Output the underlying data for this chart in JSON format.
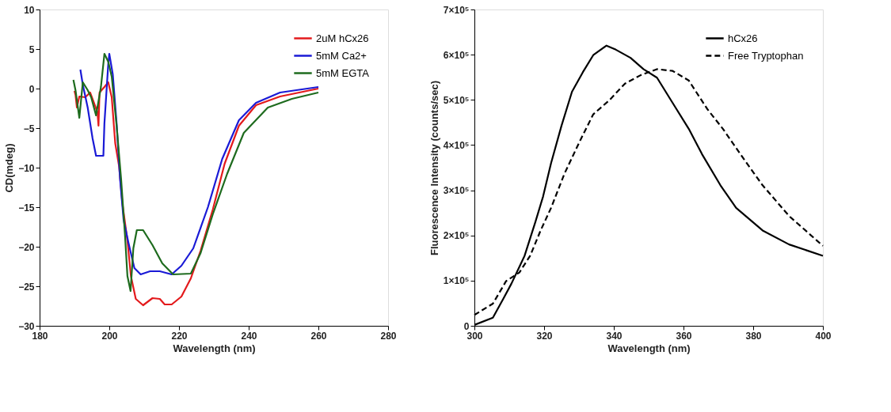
{
  "chart_data": [
    {
      "type": "line",
      "xlabel": "Wavelength (nm)",
      "ylabel": "CD(mdeg)",
      "xlim": [
        180,
        280
      ],
      "xticks": [
        180,
        200,
        220,
        240,
        260,
        280
      ],
      "ylim": [
        -30,
        10
      ],
      "yticks": [
        -30,
        -25,
        -20,
        -15,
        -10,
        -5,
        0,
        5,
        10
      ],
      "grid": false,
      "legend": "top right",
      "marker": "none",
      "series": [
        {
          "name": "2uM hCx26",
          "color": "#e31a1c",
          "line_style": "solid",
          "x": [
            190,
            190.3,
            190.7,
            191.4,
            193.1,
            194.5,
            196.6,
            196.9,
            197.2,
            198.6,
            199.7,
            200.7,
            201.7,
            202.8,
            203.8,
            205.2,
            206.2,
            207.6,
            209.7,
            212.4,
            214.5,
            215.9,
            217.9,
            220.7,
            223.4,
            226.2,
            229.7,
            233.1,
            237.2,
            242.1,
            249,
            260
          ],
          "values": [
            -0.3,
            -0.8,
            -2.4,
            -1,
            -1.1,
            -0.5,
            -3,
            -4.7,
            -0.5,
            0.2,
            0.8,
            -1.1,
            -6.9,
            -9.8,
            -14.7,
            -19.2,
            -23.7,
            -26.6,
            -27.4,
            -26.5,
            -26.6,
            -27.3,
            -27.3,
            -26.3,
            -24,
            -20.5,
            -15.3,
            -9.5,
            -4.7,
            -2.1,
            -1,
            0
          ]
        },
        {
          "name": "5mM Ca2+",
          "color": "#1a1ad6",
          "line_style": "solid",
          "x": [
            191.7,
            192.4,
            193.8,
            195.2,
            196.2,
            198.3,
            198.6,
            199.7,
            200,
            201,
            202.1,
            203.1,
            204.1,
            205.5,
            207.2,
            209,
            211.7,
            214.5,
            217.9,
            220.7,
            224.1,
            228.3,
            232.4,
            237.2,
            242.1,
            249,
            260
          ],
          "values": [
            2.4,
            0.5,
            -2.4,
            -6.3,
            -8.5,
            -8.5,
            -4.4,
            3.1,
            4.4,
            1.8,
            -4.4,
            -11.5,
            -16.6,
            -19.5,
            -22.7,
            -23.5,
            -23.1,
            -23.1,
            -23.5,
            -22.4,
            -20.2,
            -15,
            -8.9,
            -4,
            -1.8,
            -0.5,
            0.2
          ]
        },
        {
          "name": "5mM EGTA",
          "color": "#1e6b1e",
          "line_style": "solid",
          "x": [
            189.7,
            190.3,
            191.4,
            192.4,
            193.8,
            194.8,
            196.2,
            197.6,
            198.6,
            199.7,
            200.7,
            202.1,
            203.4,
            204.5,
            205.2,
            206.1,
            206.9,
            207.9,
            209.7,
            212.4,
            215.2,
            218.3,
            223.4,
            226.2,
            229.7,
            233.8,
            238.6,
            245.5,
            252.4,
            260
          ],
          "values": [
            1.1,
            -0.2,
            -3.7,
            0.8,
            -0.2,
            -1.1,
            -3.4,
            0.2,
            4.4,
            3.4,
            1.5,
            -4.7,
            -11.5,
            -18.5,
            -23.7,
            -25.6,
            -20.2,
            -17.9,
            -17.9,
            -19.8,
            -22.1,
            -23.5,
            -23.4,
            -20.8,
            -15.9,
            -10.8,
            -5.6,
            -2.4,
            -1.3,
            -0.5
          ]
        }
      ]
    },
    {
      "type": "line",
      "xlabel": "Wavelength (nm)",
      "ylabel": "Fluorescence Intensity (counts/sec)",
      "xlim": [
        300,
        400
      ],
      "xticks": [
        300,
        320,
        340,
        360,
        380,
        400
      ],
      "ylim": [
        0,
        700000
      ],
      "yticks": [
        0,
        {
          "value": 100000,
          "label": "1×10⁵"
        },
        {
          "value": 200000,
          "label": "2×10⁵"
        },
        {
          "value": 300000,
          "label": "3×10⁵"
        },
        {
          "value": 400000,
          "label": "4×10⁵"
        },
        {
          "value": 500000,
          "label": "5×10⁵"
        },
        {
          "value": 600000,
          "label": "6×10⁵"
        },
        {
          "value": 700000,
          "label": "7×10⁵"
        }
      ],
      "grid": false,
      "legend": "top right",
      "marker": "none",
      "series": [
        {
          "name": "hCx26",
          "color": "#000000",
          "line_style": "solid",
          "x": [
            300,
            305.3,
            308.3,
            310.6,
            314.4,
            317.5,
            319.7,
            322,
            325,
            328,
            331.1,
            334.1,
            337.9,
            340.6,
            344.8,
            348.5,
            352.4,
            356.9,
            361.5,
            365.3,
            370.6,
            375.1,
            382.7,
            390.3,
            400
          ],
          "values": [
            2000,
            18000,
            60000,
            93000,
            155000,
            230000,
            286000,
            360000,
            443000,
            518000,
            561000,
            599000,
            620000,
            611000,
            593000,
            568000,
            549000,
            493000,
            436000,
            380000,
            311000,
            261000,
            211000,
            180000,
            155000
          ]
        },
        {
          "name": "Free Tryptophan",
          "color": "#000000",
          "line_style": "dashed",
          "x": [
            300,
            305.3,
            309.1,
            312.9,
            316,
            319,
            322,
            325.8,
            330.4,
            334.1,
            338.7,
            343.2,
            347.8,
            352.4,
            356.9,
            361.5,
            366.8,
            371.3,
            377.4,
            382.7,
            390.3,
            400
          ],
          "values": [
            24000,
            49000,
            99000,
            118000,
            155000,
            211000,
            261000,
            336000,
            411000,
            468000,
            499000,
            536000,
            555000,
            568000,
            564000,
            543000,
            480000,
            436000,
            368000,
            311000,
            243000,
            177000
          ]
        }
      ]
    }
  ]
}
